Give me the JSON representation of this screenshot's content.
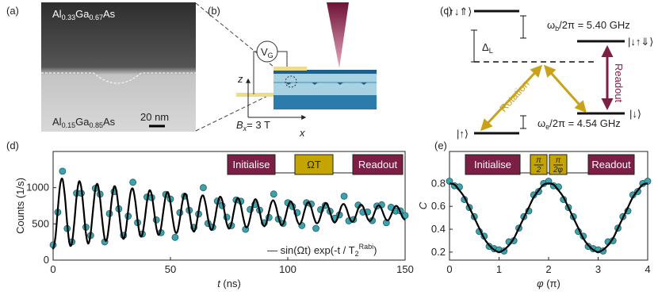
{
  "panels": {
    "a": {
      "label": "(a)",
      "top_material": [
        "Al",
        "0.33",
        "Ga",
        "0.67",
        "As"
      ],
      "bottom_material": [
        "Al",
        "0.15",
        "Ga",
        "0.85",
        "As"
      ],
      "scale_bar": "20 nm"
    },
    "b": {
      "label": "(b)",
      "gate": [
        "V",
        "G"
      ],
      "z_axis": "z",
      "x_axis": "x",
      "field": [
        "B",
        "x",
        "= 3 T"
      ]
    },
    "c": {
      "label": "(c)",
      "state_top_left": "|↑↓⇑⟩",
      "omega_b": [
        "ω",
        "b",
        "/2π = 5.40 GHz"
      ],
      "state_top_right": "|↓↑⇓⟩",
      "delta": [
        "Δ",
        "L"
      ],
      "readout": "Readout",
      "rotation": "Rotation",
      "state_bottom_right": "|↓⟩",
      "omega_e": [
        "ω",
        "e",
        "/2π = 4.54 GHz"
      ],
      "state_bottom_left": "|↑⟩"
    }
  },
  "chart_data": [
    {
      "type": "scatter",
      "label": "(d)",
      "xlabel": [
        "t",
        " (ns)"
      ],
      "ylabel": "Counts (1/s)",
      "sequence": [
        "Initialise",
        "ΩT",
        "Readout"
      ],
      "xlim": [
        0,
        150
      ],
      "xticks": [
        0,
        50,
        100,
        150
      ],
      "ylim": [
        0,
        1500
      ],
      "yticks": [
        0,
        500,
        1000
      ],
      "series": [
        {
          "mode": "markers",
          "color": "#3ba3ac",
          "x": [
            0,
            2,
            4,
            6,
            8,
            10,
            12,
            14,
            16,
            18,
            20,
            22,
            24,
            26,
            28,
            30,
            32,
            34,
            36,
            38,
            40,
            42,
            44,
            46,
            48,
            50,
            52,
            54,
            56,
            58,
            60,
            62,
            64,
            66,
            68,
            70,
            72,
            74,
            76,
            78,
            80,
            82,
            84,
            86,
            88,
            90,
            92,
            94,
            96,
            98,
            100,
            102,
            104,
            106,
            108,
            110,
            112,
            114,
            116,
            118,
            120,
            122,
            124,
            126,
            128,
            130,
            132,
            134,
            136,
            138,
            140,
            142,
            144,
            146,
            148,
            150
          ],
          "values": [
            210,
            661,
            1228,
            436,
            252,
            924,
            924,
            454,
            340,
            991,
            910,
            252,
            642,
            946,
            708,
            342,
            607,
            1075,
            517,
            360,
            870,
            864,
            555,
            379,
            907,
            843,
            314,
            655,
            883,
            688,
            453,
            636,
            1000,
            506,
            455,
            815,
            752,
            593,
            476,
            830,
            813,
            426,
            699,
            768,
            690,
            516,
            589,
            912,
            567,
            506,
            792,
            740,
            655,
            477,
            792,
            774,
            438,
            697,
            755,
            674,
            578,
            624,
            883,
            542,
            560,
            759,
            663,
            665,
            546,
            747,
            763,
            516,
            729,
            677,
            680,
            616
          ]
        },
        {
          "mode": "line",
          "color": "#000000",
          "name_parts": [
            "— sin(Ωt) exp(-t / T",
            "2",
            "Rabi",
            ")"
          ],
          "x": [
            0,
            1,
            2,
            3,
            4,
            5,
            6,
            7,
            8,
            9,
            10,
            11,
            12,
            13,
            14,
            15,
            16,
            17,
            18,
            19,
            20,
            21,
            22,
            23,
            24,
            25,
            26,
            27,
            28,
            29,
            30,
            31,
            32,
            33,
            34,
            35,
            36,
            37,
            38,
            39,
            40,
            41,
            42,
            43,
            44,
            45,
            46,
            47,
            48,
            49,
            50,
            51,
            52,
            53,
            54,
            55,
            56,
            57,
            58,
            59,
            60,
            61,
            62,
            63,
            64,
            65,
            66,
            67,
            68,
            69,
            70,
            71,
            72,
            73,
            74,
            75,
            76,
            77,
            78,
            79,
            80,
            81,
            82,
            83,
            84,
            85,
            86,
            87,
            88,
            89,
            90,
            91,
            92,
            93,
            94,
            95,
            96,
            97,
            98,
            99,
            100,
            101,
            102,
            103,
            104,
            105,
            106,
            107,
            108,
            109,
            110,
            111,
            112,
            113,
            114,
            115,
            116,
            117,
            118,
            119,
            120,
            121,
            122,
            123,
            124,
            125,
            126,
            127,
            128,
            129,
            130,
            131,
            132,
            133,
            134,
            135,
            136,
            137,
            138,
            139,
            140,
            141,
            142,
            143,
            144,
            145,
            146,
            147,
            148,
            149,
            150
          ],
          "values": [
            150,
            319,
            701,
            1041,
            1118,
            887,
            506,
            227,
            232,
            510,
            874,
            1083,
            1004,
            695,
            364,
            227,
            370,
            693,
            981,
            1046,
            850,
            528,
            292,
            296,
            532,
            839,
            1016,
            950,
            688,
            408,
            292,
            413,
            687,
            930,
            985,
            820,
            547,
            347,
            350,
            550,
            810,
            960,
            904,
            683,
            445,
            347,
            449,
            681,
            887,
            934,
            793,
            562,
            394,
            396,
            565,
            786,
            913,
            865,
            678,
            476,
            393,
            480,
            676,
            851,
            890,
            771,
            576,
            433,
            435,
            578,
            765,
            872,
            832,
            673,
            503,
            433,
            506,
            672,
            820,
            853,
            753,
            587,
            466,
            468,
            589,
            747,
            838,
            804,
            670,
            526,
            466,
            528,
            669,
            794,
            822,
            737,
            597,
            495,
            496,
            599,
            732,
            809,
            780,
            667,
            545,
            494,
            547,
            666,
            772,
            796,
            724,
            605,
            518,
            520,
            607,
            720,
            785,
            760,
            664,
            561,
            518,
            563,
            664,
            753,
            773,
            712,
            612,
            539,
            540,
            613,
            709,
            764,
            743,
            662,
            575,
            538,
            576,
            661,
            737,
            754,
            703,
            618,
            556,
            557,
            619,
            700,
            747,
            729,
            660,
            586,
            556
          ]
        }
      ]
    },
    {
      "type": "scatter",
      "label": "(e)",
      "xlabel": [
        "φ",
        " (π)"
      ],
      "ylabel": "C",
      "sequence": [
        "Initialise",
        [
          "π",
          "2"
        ],
        [
          "π",
          "2φ"
        ],
        "Readout"
      ],
      "xlim": [
        0,
        4
      ],
      "xticks": [
        0,
        1,
        2,
        3,
        4
      ],
      "ylim": [
        0.13,
        1.08
      ],
      "yticks": [
        0.2,
        0.4,
        0.6,
        0.8
      ],
      "series": [
        {
          "mode": "markers",
          "color": "#3ba3ac",
          "x": [
            0,
            0.1,
            0.2,
            0.3,
            0.4,
            0.5,
            0.6,
            0.7,
            0.8,
            0.9,
            1,
            1.1,
            1.2,
            1.3,
            1.4,
            1.5,
            1.6,
            1.7,
            1.8,
            1.9,
            2,
            2.1,
            2.2,
            2.3,
            2.4,
            2.5,
            2.6,
            2.7,
            2.8,
            2.9,
            3,
            3.1,
            3.2,
            3.3,
            3.4,
            3.5,
            3.6,
            3.7,
            3.8,
            3.9,
            4
          ],
          "values": [
            0.82,
            0.78,
            0.77,
            0.66,
            0.59,
            0.51,
            0.38,
            0.34,
            0.25,
            0.23,
            0.22,
            0.21,
            0.29,
            0.3,
            0.41,
            0.51,
            0.56,
            0.7,
            0.73,
            0.8,
            0.82,
            0.78,
            0.77,
            0.66,
            0.59,
            0.51,
            0.38,
            0.34,
            0.25,
            0.23,
            0.22,
            0.21,
            0.29,
            0.3,
            0.41,
            0.51,
            0.56,
            0.7,
            0.73,
            0.8,
            0.82
          ]
        },
        {
          "mode": "line",
          "color": "#000000",
          "x": [
            0,
            0.1,
            0.2,
            0.3,
            0.4,
            0.5,
            0.6,
            0.7,
            0.8,
            0.9,
            1,
            1.1,
            1.2,
            1.3,
            1.4,
            1.5,
            1.6,
            1.7,
            1.8,
            1.9,
            2,
            2.1,
            2.2,
            2.3,
            2.4,
            2.5,
            2.6,
            2.7,
            2.8,
            2.9,
            3,
            3.1,
            3.2,
            3.3,
            3.4,
            3.5,
            3.6,
            3.7,
            3.8,
            3.9,
            4
          ],
          "values": [
            0.8,
            0.79,
            0.74,
            0.68,
            0.59,
            0.5,
            0.41,
            0.32,
            0.26,
            0.22,
            0.2,
            0.22,
            0.26,
            0.32,
            0.41,
            0.5,
            0.59,
            0.68,
            0.74,
            0.79,
            0.8,
            0.79,
            0.74,
            0.68,
            0.59,
            0.5,
            0.41,
            0.32,
            0.26,
            0.22,
            0.2,
            0.22,
            0.26,
            0.32,
            0.41,
            0.5,
            0.59,
            0.68,
            0.74,
            0.79,
            0.8
          ]
        }
      ]
    }
  ]
}
